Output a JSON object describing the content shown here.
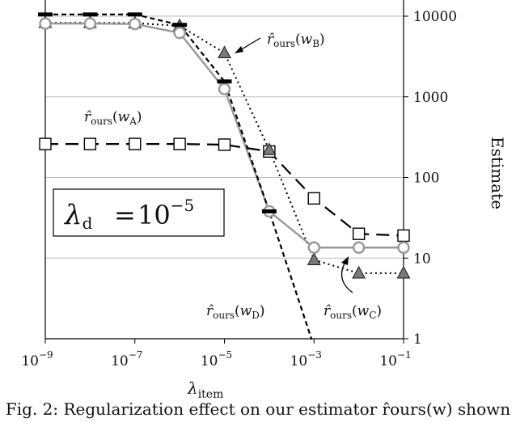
{
  "chart_data": {
    "type": "line",
    "title": "",
    "xlabel": "λ_item",
    "ylabel": "Estimate",
    "x_scale": "log",
    "y_scale": "log",
    "x": [
      1e-09,
      1e-08,
      1e-07,
      1e-06,
      1e-05,
      0.0001,
      0.001,
      0.01,
      0.1
    ],
    "xlim": [
      1e-09,
      0.1
    ],
    "ylim": [
      1,
      15000
    ],
    "x_ticks": [
      1e-09,
      1e-07,
      1e-05,
      0.001,
      0.1
    ],
    "x_tick_labels": [
      {
        "base": "10",
        "exp": "−9"
      },
      {
        "base": "10",
        "exp": "−7"
      },
      {
        "base": "10",
        "exp": "−5"
      },
      {
        "base": "10",
        "exp": "−3"
      },
      {
        "base": "10",
        "exp": "−1"
      }
    ],
    "y_ticks": [
      1,
      10,
      100,
      1000,
      10000
    ],
    "y_tick_labels": [
      "1",
      "10",
      "100",
      "1000",
      "10000"
    ],
    "y_axis_side": "right",
    "grid": "horizontal",
    "series": [
      {
        "label": {
          "main": "r̂",
          "sub": "ours",
          "arg": "w",
          "argsub": "A"
        },
        "marker": "square",
        "style": "long-dash",
        "color": "#000000",
        "values": [
          260,
          260,
          260,
          260,
          255,
          210,
          55,
          20,
          19
        ]
      },
      {
        "label": {
          "main": "r̂",
          "sub": "ours",
          "arg": "w",
          "argsub": "B"
        },
        "marker": "triangle",
        "style": "dotted",
        "color": "#000000",
        "values": [
          8300,
          8300,
          8200,
          7600,
          3500,
          220,
          9.5,
          6.5,
          6.5
        ]
      },
      {
        "label": {
          "main": "r̂",
          "sub": "ours",
          "arg": "w",
          "argsub": "C"
        },
        "marker": "circle",
        "style": "solid",
        "color": "#999999",
        "values": [
          8100,
          8100,
          8000,
          6200,
          1250,
          38,
          13.5,
          13.5,
          13.5
        ]
      },
      {
        "label": {
          "main": "r̂",
          "sub": "ours",
          "arg": "w",
          "argsub": "D"
        },
        "marker": "dash",
        "style": "short-dash",
        "color": "#000000",
        "values": [
          10500,
          10500,
          10500,
          7800,
          1550,
          38,
          0.8,
          null,
          null
        ]
      }
    ],
    "box_annotation": {
      "lhs": "λ",
      "lhs_sub": "d",
      "rhs_base": "10",
      "rhs_exp": "−5"
    }
  },
  "caption": "Fig. 2: Regularization effect on our estimator r̂ours(w) shown"
}
